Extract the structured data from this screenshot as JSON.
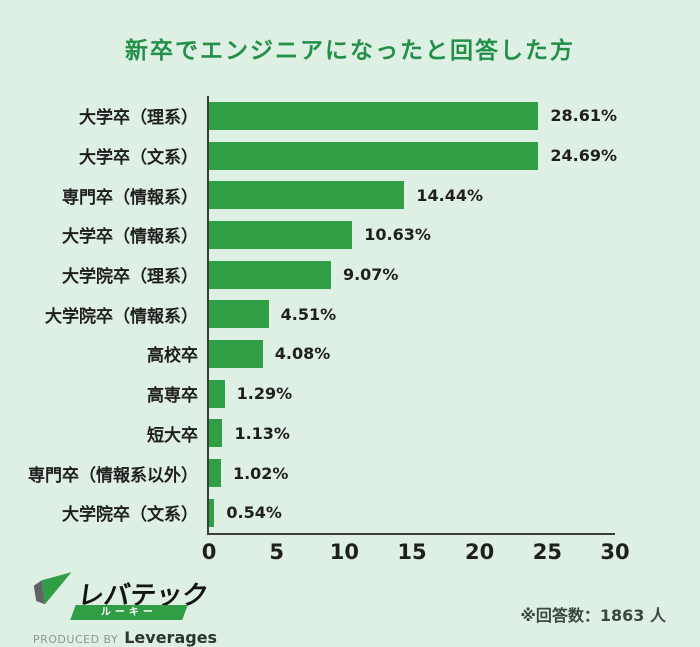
{
  "colors": {
    "background": "#deefe3",
    "bar": "#2f9e44",
    "title": "#23904a",
    "axis": "#3a3f3b"
  },
  "title": {
    "text": "新卒でエンジニアになったと回答した方"
  },
  "chart_data": {
    "type": "bar",
    "orientation": "horizontal",
    "title": "新卒でエンジニアになったと回答した方",
    "categories": [
      "大学卒（理系）",
      "大学卒（文系）",
      "専門卒（情報系）",
      "大学卒（情報系）",
      "大学院卒（理系）",
      "大学院卒（情報系）",
      "高校卒",
      "高専卒",
      "短大卒",
      "専門卒（情報系以外）",
      "大学院卒（文系）"
    ],
    "values": [
      28.61,
      24.69,
      14.44,
      10.63,
      9.07,
      4.51,
      4.08,
      1.29,
      1.13,
      1.02,
      0.54
    ],
    "value_labels": [
      "28.61%",
      "24.69%",
      "14.44%",
      "10.63%",
      "9.07%",
      "4.51%",
      "4.08%",
      "1.29%",
      "1.13%",
      "1.02%",
      "0.54%"
    ],
    "xlabel": "",
    "ylabel": "",
    "xlim": [
      0,
      30
    ],
    "x_ticks": [
      0,
      5,
      10,
      15,
      20,
      25,
      30
    ],
    "grid": false,
    "legend": false,
    "bar_color": "#2f9e44"
  },
  "footer": {
    "logo": {
      "brand": "レバテック",
      "sub": "ルーキー",
      "produced_by": "PRODUCED BY",
      "company": "Leverages"
    },
    "note": "※回答数：1863 人"
  }
}
